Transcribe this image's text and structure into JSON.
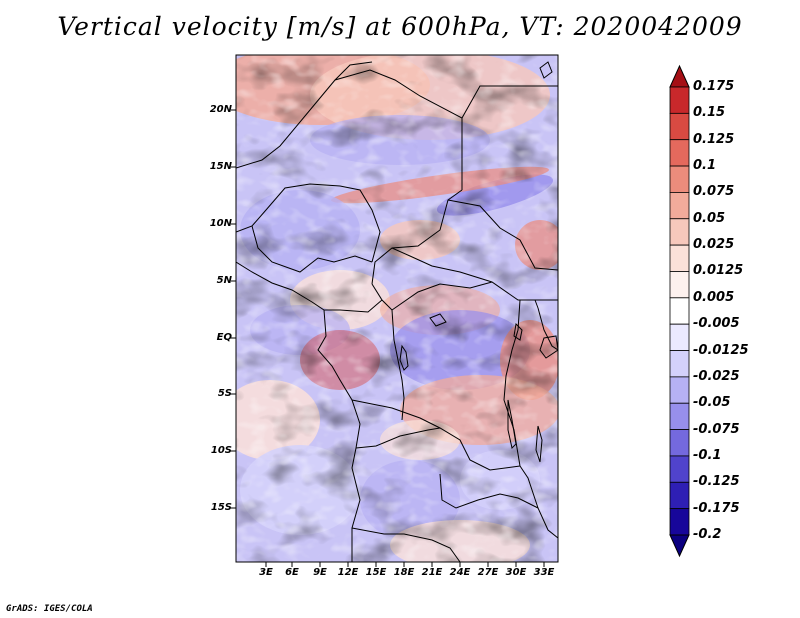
{
  "title": "Vertical velocity [m/s] at 600hPa, VT: 2020042009",
  "credit": "GrADS: IGES/COLA",
  "lat_labels": [
    "20N",
    "15N",
    "10N",
    "5N",
    "EQ",
    "5S",
    "10S",
    "15S"
  ],
  "lon_labels": [
    "3E",
    "6E",
    "9E",
    "12E",
    "15E",
    "18E",
    "21E",
    "24E",
    "27E",
    "30E",
    "33E"
  ],
  "colorbar": {
    "labels": [
      "0.175",
      "0.15",
      "0.125",
      "0.1",
      "0.075",
      "0.05",
      "0.025",
      "0.0125",
      "0.005",
      "-0.005",
      "-0.0125",
      "-0.025",
      "-0.05",
      "-0.075",
      "-0.1",
      "-0.125",
      "-0.175",
      "-0.2"
    ],
    "colors": [
      "#a50f15",
      "#c8282b",
      "#d94a42",
      "#e4695d",
      "#ec8c7c",
      "#f2ab9b",
      "#f7c8bc",
      "#fbe1d9",
      "#fdf1ee",
      "#ffffff",
      "#ebe9ff",
      "#d4d1fb",
      "#b6b1f4",
      "#978fec",
      "#7469de",
      "#5043cc",
      "#2e1fb4",
      "#17069a",
      "#0b0080"
    ]
  }
}
